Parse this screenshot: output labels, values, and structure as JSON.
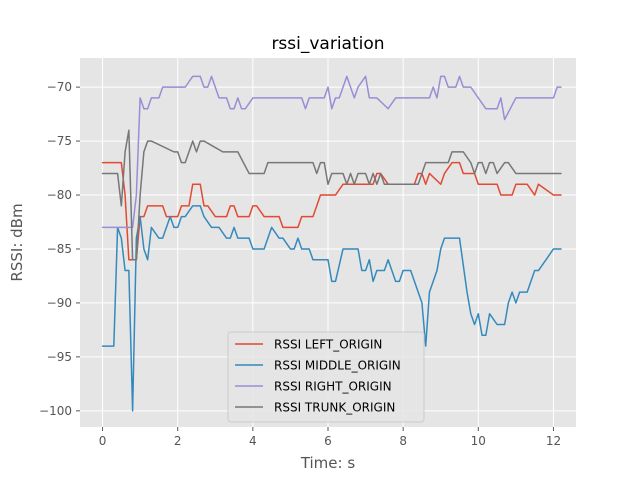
{
  "chart_data": {
    "type": "line",
    "title": "rssi_variation",
    "xlabel": "Time: s",
    "ylabel": "RSSI: dBm",
    "xlim": [
      -0.6,
      12.6
    ],
    "ylim": [
      -101.5,
      -67.3
    ],
    "xticks": [
      0,
      2,
      4,
      6,
      8,
      10,
      12
    ],
    "xtick_labels": [
      "0",
      "2",
      "4",
      "6",
      "8",
      "10",
      "12"
    ],
    "yticks": [
      -100,
      -95,
      -90,
      -85,
      -80,
      -75,
      -70
    ],
    "ytick_labels": [
      "−100",
      "−95",
      "−90",
      "−85",
      "−80",
      "−75",
      "−70"
    ],
    "grid": true,
    "legend_position": "lower-center",
    "series": [
      {
        "name": "RSSI LEFT_ORIGIN",
        "color": "#E24A33",
        "x": [
          0,
          0.4,
          0.5,
          0.6,
          0.7,
          0.8,
          0.9,
          1.0,
          1.1,
          1.2,
          1.6,
          1.7,
          2.0,
          2.1,
          2.3,
          2.4,
          2.6,
          2.7,
          2.8,
          3.0,
          3.1,
          3.3,
          3.4,
          3.5,
          3.6,
          3.9,
          4.0,
          4.1,
          4.3,
          4.4,
          4.7,
          4.8,
          5.2,
          5.3,
          5.6,
          5.7,
          5.8,
          6.0,
          6.1,
          6.2,
          6.4,
          6.6,
          6.8,
          6.9,
          7.0,
          7.2,
          7.3,
          7.4,
          7.6,
          7.8,
          8.0,
          8.3,
          8.4,
          8.5,
          8.6,
          8.7,
          9.0,
          9.1,
          9.3,
          9.5,
          9.6,
          9.9,
          10.0,
          10.2,
          10.5,
          10.6,
          10.8,
          10.9,
          11.0,
          11.2,
          11.3,
          11.5,
          11.6,
          12.0,
          12.2
        ],
        "y": [
          -77,
          -77,
          -77,
          -80,
          -86,
          -86,
          -86,
          -82,
          -82,
          -81,
          -81,
          -82,
          -82,
          -81,
          -81,
          -79,
          -79,
          -81,
          -81,
          -82,
          -82,
          -82,
          -81,
          -81,
          -82,
          -82,
          -81,
          -81,
          -82,
          -82,
          -82,
          -83,
          -83,
          -82,
          -82,
          -81,
          -80,
          -80,
          -80,
          -80,
          -79,
          -79,
          -79,
          -79,
          -79,
          -79,
          -78,
          -78,
          -79,
          -79,
          -79,
          -79,
          -78,
          -78,
          -79,
          -78,
          -79,
          -78,
          -77,
          -77,
          -78,
          -78,
          -79,
          -79,
          -79,
          -80,
          -80,
          -80,
          -79,
          -79,
          -79,
          -80,
          -79,
          -80,
          -80
        ]
      },
      {
        "name": "RSSI MIDDLE_ORIGIN",
        "color": "#348ABD",
        "x": [
          0,
          0.3,
          0.4,
          0.5,
          0.6,
          0.7,
          0.8,
          0.9,
          1.0,
          1.1,
          1.2,
          1.3,
          1.5,
          1.6,
          1.8,
          1.9,
          2.0,
          2.1,
          2.2,
          2.4,
          2.6,
          2.7,
          2.9,
          3.1,
          3.3,
          3.4,
          3.5,
          3.6,
          3.9,
          4.0,
          4.3,
          4.4,
          4.5,
          4.7,
          4.8,
          5.0,
          5.1,
          5.2,
          5.3,
          5.5,
          5.6,
          5.8,
          6.0,
          6.1,
          6.2,
          6.4,
          6.5,
          6.6,
          6.8,
          6.9,
          7.0,
          7.1,
          7.2,
          7.3,
          7.5,
          7.6,
          7.8,
          7.9,
          8.0,
          8.2,
          8.4,
          8.5,
          8.6,
          8.7,
          8.8,
          8.9,
          9.0,
          9.1,
          9.2,
          9.3,
          9.5,
          9.7,
          9.8,
          9.9,
          10.0,
          10.1,
          10.2,
          10.3,
          10.5,
          10.7,
          10.8,
          10.9,
          11.0,
          11.1,
          11.3,
          11.5,
          11.6,
          11.8,
          12.0,
          12.2
        ],
        "y": [
          -94,
          -94,
          -83,
          -84,
          -87,
          -87,
          -100,
          -84,
          -82,
          -85,
          -86,
          -83,
          -84,
          -84,
          -82,
          -83,
          -83,
          -82,
          -82,
          -81,
          -81,
          -82,
          -83,
          -83,
          -84,
          -84,
          -83,
          -84,
          -84,
          -85,
          -85,
          -84,
          -83,
          -84,
          -84,
          -85,
          -85,
          -84,
          -85,
          -85,
          -86,
          -86,
          -86,
          -88,
          -88,
          -85,
          -85,
          -85,
          -85,
          -87,
          -87,
          -86,
          -88,
          -87,
          -87,
          -86,
          -88,
          -88,
          -87,
          -87,
          -89,
          -90,
          -94,
          -89,
          -88,
          -87,
          -85,
          -84,
          -84,
          -84,
          -84,
          -89,
          -91,
          -92,
          -91,
          -93,
          -93,
          -91,
          -92,
          -92,
          -90,
          -89,
          -90,
          -89,
          -89,
          -87,
          -87,
          -86,
          -85,
          -85
        ]
      },
      {
        "name": "RSSI RIGHT_ORIGIN",
        "color": "#988ED5",
        "x": [
          0,
          0.3,
          0.4,
          0.5,
          0.6,
          0.7,
          0.8,
          0.9,
          1.0,
          1.1,
          1.2,
          1.3,
          1.4,
          1.5,
          1.6,
          2.2,
          2.4,
          2.6,
          2.7,
          2.8,
          2.9,
          3.0,
          3.1,
          3.3,
          3.4,
          3.5,
          3.6,
          3.7,
          3.8,
          4.0,
          4.4,
          4.6,
          5.3,
          5.4,
          5.5,
          5.6,
          5.9,
          6.0,
          6.1,
          6.2,
          6.3,
          6.4,
          6.5,
          6.7,
          6.8,
          7.0,
          7.1,
          7.2,
          7.3,
          7.6,
          7.8,
          8.0,
          8.6,
          8.7,
          8.8,
          8.9,
          9.0,
          9.1,
          9.2,
          9.3,
          9.4,
          9.5,
          9.6,
          9.7,
          9.8,
          10.0,
          10.2,
          10.4,
          10.5,
          10.6,
          10.7,
          11.0,
          11.5,
          11.8,
          12.0,
          12.1,
          12.2
        ],
        "y": [
          -83,
          -83,
          -83,
          -83,
          -83,
          -83,
          -83,
          -80,
          -71,
          -72,
          -72,
          -71,
          -71,
          -71,
          -70,
          -70,
          -69,
          -69,
          -70,
          -70,
          -69,
          -70,
          -71,
          -71,
          -72,
          -72,
          -71,
          -72,
          -72,
          -71,
          -71,
          -71,
          -71,
          -72,
          -71,
          -71,
          -71,
          -70,
          -72,
          -71,
          -71,
          -70,
          -69,
          -71,
          -70,
          -69,
          -71,
          -71,
          -71,
          -72,
          -71,
          -71,
          -71,
          -71,
          -70,
          -71,
          -69,
          -69,
          -70,
          -70,
          -70,
          -69,
          -70,
          -70,
          -70,
          -71,
          -72,
          -72,
          -72,
          -71,
          -73,
          -71,
          -71,
          -71,
          -71,
          -70,
          -70
        ]
      },
      {
        "name": "RSSI TRUNK_ORIGIN",
        "color": "#777777",
        "x": [
          0,
          0.2,
          0.3,
          0.4,
          0.5,
          0.6,
          0.7,
          0.8,
          0.9,
          1.0,
          1.1,
          1.2,
          1.3,
          1.9,
          2.0,
          2.1,
          2.2,
          2.3,
          2.4,
          2.5,
          2.6,
          2.7,
          3.2,
          3.3,
          3.5,
          3.6,
          3.9,
          4.0,
          4.2,
          4.3,
          4.4,
          5.5,
          5.6,
          5.7,
          5.8,
          5.9,
          6.0,
          6.1,
          6.2,
          6.3,
          6.4,
          6.5,
          6.6,
          6.7,
          6.8,
          6.9,
          7.0,
          7.1,
          7.2,
          7.3,
          7.4,
          7.5,
          7.6,
          7.7,
          7.8,
          8.0,
          8.3,
          8.4,
          8.5,
          8.6,
          8.7,
          9.0,
          9.1,
          9.2,
          9.3,
          9.4,
          9.5,
          9.6,
          9.8,
          9.9,
          10.0,
          10.1,
          10.2,
          10.3,
          10.4,
          10.5,
          10.7,
          10.8,
          11.0,
          11.2,
          12.2
        ],
        "y": [
          -78,
          -78,
          -78,
          -78,
          -81,
          -76,
          -74,
          -86,
          -86,
          -80,
          -76,
          -75,
          -75,
          -76,
          -76,
          -77,
          -77,
          -76,
          -75,
          -76,
          -75,
          -75,
          -76,
          -76,
          -76,
          -76,
          -78,
          -78,
          -78,
          -78,
          -77,
          -77,
          -77,
          -78,
          -77,
          -77,
          -79,
          -78,
          -78,
          -78,
          -78,
          -79,
          -78,
          -79,
          -78,
          -78,
          -78,
          -79,
          -78,
          -79,
          -78,
          -79,
          -79,
          -79,
          -79,
          -79,
          -79,
          -79,
          -78,
          -77,
          -77,
          -77,
          -77,
          -77,
          -76,
          -76,
          -76,
          -76,
          -77,
          -78,
          -77,
          -77,
          -78,
          -77,
          -77,
          -78,
          -77,
          -77,
          -78,
          -78,
          -78
        ]
      }
    ]
  }
}
